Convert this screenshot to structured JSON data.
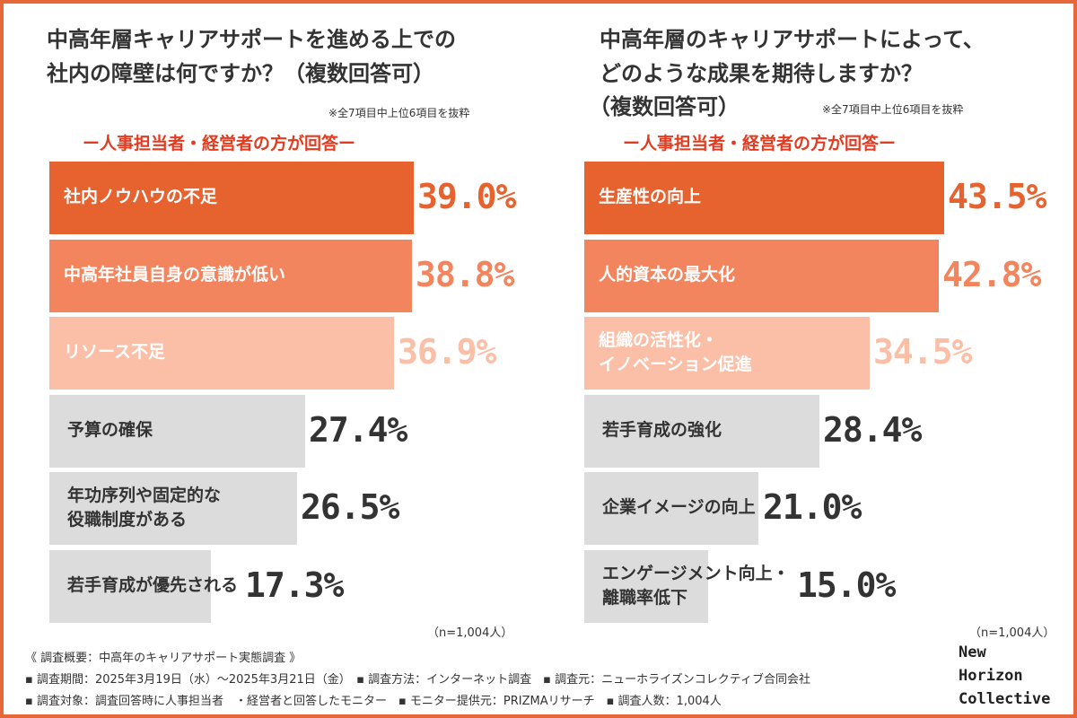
{
  "colors": {
    "border": "#e8673a",
    "tier1": "#e6622f",
    "tier2": "#f2855e",
    "tier3": "#fbbfa7",
    "gray": "#dcdcdc",
    "red_text": "#e23b1f",
    "dark_text": "#333333"
  },
  "left_panel": {
    "title_line1": "中高年層キャリアサポートを進める上での",
    "title_line2": "社内の障壁は何ですか？（複数回答可）",
    "note": "※全7項目中上位6項目を抜粋",
    "respondent": "ー人事担当者・経営者の方が回答ー",
    "sample": "（n=1,004人）"
  },
  "right_panel": {
    "title_line1": "中高年層のキャリアサポートによって、",
    "title_line2": "どのような成果を期待しますか？",
    "title_line3": "（複数回答可）",
    "note": "※全7項目中上位6項目を抜粋",
    "respondent": "ー人事担当者・経営者の方が回答ー",
    "sample": "（n=1,004人）"
  },
  "chart_data": [
    {
      "type": "bar",
      "orientation": "horizontal",
      "title": "中高年層キャリアサポートを進める上での社内の障壁は何ですか？（複数回答可）",
      "categories": [
        "社内ノウハウの不足",
        "中高年社員自身の意識が低い",
        "リソース不足",
        "予算の確保",
        "年功序列や固定的な\n役職制度がある",
        "若手育成が優先される"
      ],
      "values": [
        39.0,
        38.8,
        36.9,
        27.4,
        26.5,
        17.3
      ],
      "labels": [
        "39.0%",
        "38.8%",
        "36.9%",
        "27.4%",
        "26.5%",
        "17.3%"
      ],
      "tiers": [
        1,
        2,
        3,
        0,
        0,
        0
      ],
      "unit": "%",
      "xlim": [
        0,
        39
      ]
    },
    {
      "type": "bar",
      "orientation": "horizontal",
      "title": "中高年層のキャリアサポートによって、どのような成果を期待しますか？（複数回答可）",
      "categories": [
        "生産性の向上",
        "人的資本の最大化",
        "組織の活性化・\nイノベーション促進",
        "若手育成の強化",
        "企業イメージの向上",
        "エンゲージメント向上・\n離職率低下"
      ],
      "values": [
        43.5,
        42.8,
        34.5,
        28.4,
        21.0,
        15.0
      ],
      "labels": [
        "43.5%",
        "42.8%",
        "34.5%",
        "28.4%",
        "21.0%",
        "15.0%"
      ],
      "tiers": [
        1,
        2,
        3,
        0,
        0,
        0
      ],
      "unit": "%",
      "xlim": [
        0,
        43.5
      ]
    }
  ],
  "footer": {
    "line1": "《 調査概要：中高年のキャリアサポート実態調査 》",
    "line2": "▪ 調査期間：2025年3月19日（水）〜2025年3月21日（金）　▪ 調査方法：インターネット調査　▪ 調査元：ニューホライズンコレクティブ合同会社",
    "line3": "▪ 調査対象：調査回答時に人事担当者　・経営者と回答したモニター　▪ モニター提供元：PRIZMAリサーチ　▪ 調査人数：1,004人"
  },
  "brand": {
    "line1": "New",
    "line2": "Horizon",
    "line3": "Collective"
  }
}
